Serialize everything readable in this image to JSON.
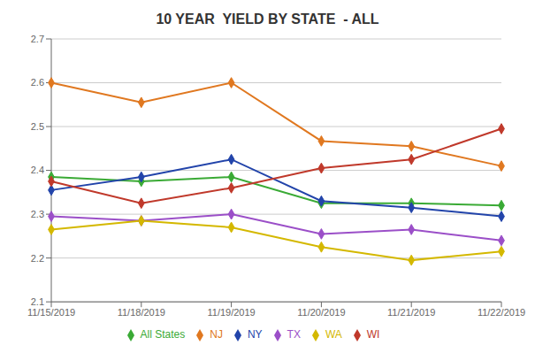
{
  "chart_data": {
    "type": "line",
    "title": "10 YEAR  YIELD BY STATE  - ALL",
    "categories": [
      "11/15/2019",
      "11/18/2019",
      "11/19/2019",
      "11/20/2019",
      "11/21/2019",
      "11/22/2019"
    ],
    "series": [
      {
        "name": "All States",
        "color": "#3aaa35",
        "marker": "diamond",
        "values": [
          2.385,
          2.375,
          2.385,
          2.325,
          2.325,
          2.32
        ]
      },
      {
        "name": "TX",
        "color": "#9b4fc8",
        "marker": "diamond",
        "values": [
          2.295,
          2.285,
          2.3,
          2.255,
          2.265,
          2.24
        ]
      },
      {
        "name": "NJ",
        "color": "#e07820",
        "marker": "diamond",
        "values": [
          2.6,
          2.555,
          2.6,
          2.467,
          2.455,
          2.41
        ]
      },
      {
        "name": "NY",
        "color": "#2244aa",
        "marker": "diamond",
        "values": [
          2.355,
          2.385,
          2.425,
          2.33,
          2.315,
          2.295
        ]
      },
      {
        "name": "WA",
        "color": "#d4b800",
        "marker": "diamond",
        "values": [
          2.265,
          2.285,
          2.27,
          2.225,
          2.195,
          2.215
        ]
      },
      {
        "name": "WI",
        "color": "#c0392b",
        "marker": "diamond",
        "values": [
          2.375,
          2.325,
          2.36,
          2.405,
          2.425,
          2.495
        ]
      }
    ],
    "ylim": [
      2.1,
      2.7
    ],
    "yticks": [
      2.1,
      2.2,
      2.3,
      2.4,
      2.5,
      2.6,
      2.7
    ],
    "grid": true,
    "legend": "bottom"
  }
}
